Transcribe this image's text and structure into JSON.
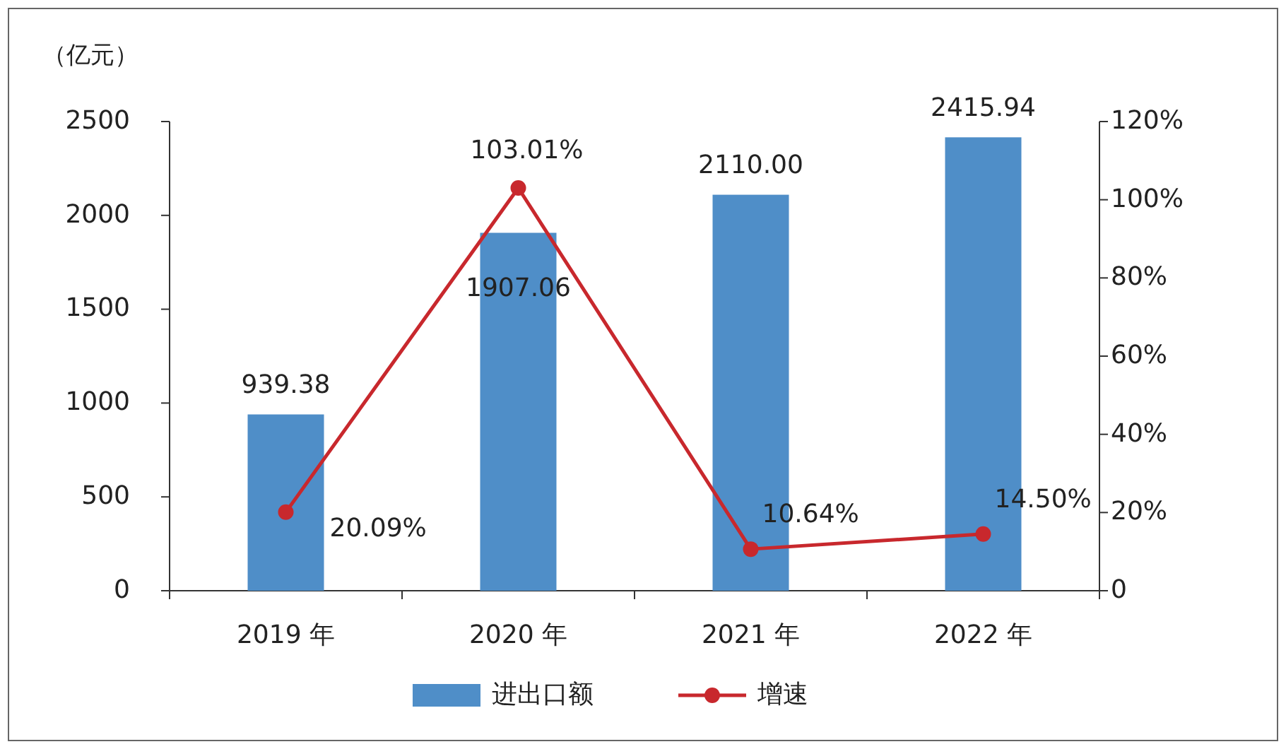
{
  "chart_data": {
    "type": "bar",
    "ylabel": "（亿元）",
    "categories": [
      "2019 年",
      "2020 年",
      "2021 年",
      "2022 年"
    ],
    "series": [
      {
        "name": "进出口额",
        "color": "#4f8ec8",
        "values": [
          939.38,
          1907.06,
          2110.0,
          2415.94
        ],
        "value_labels": [
          "939.38",
          "1907.06",
          "2110.00",
          "2415.94"
        ]
      },
      {
        "name": "增速",
        "type": "line",
        "axis": "y2",
        "color": "#c8282d",
        "marker": "circle",
        "values": [
          20.09,
          103.01,
          10.64,
          14.5
        ],
        "value_labels": [
          "20.09%",
          "103.01%",
          "10.64%",
          "14.50%"
        ]
      }
    ],
    "ylim": [
      0,
      2500
    ],
    "yticks": [
      0,
      500,
      1000,
      1500,
      2000,
      2500
    ],
    "y2lim": [
      0,
      120
    ],
    "y2ticks": [
      0,
      {
        "value": 20,
        "label": "20%"
      },
      {
        "value": 40,
        "label": "40%"
      },
      {
        "value": 60,
        "label": "60%"
      },
      {
        "value": 80,
        "label": "80%"
      },
      {
        "value": 100,
        "label": "100%"
      },
      {
        "value": 120,
        "label": "120%"
      }
    ],
    "legend": "bottom",
    "grid": false
  }
}
